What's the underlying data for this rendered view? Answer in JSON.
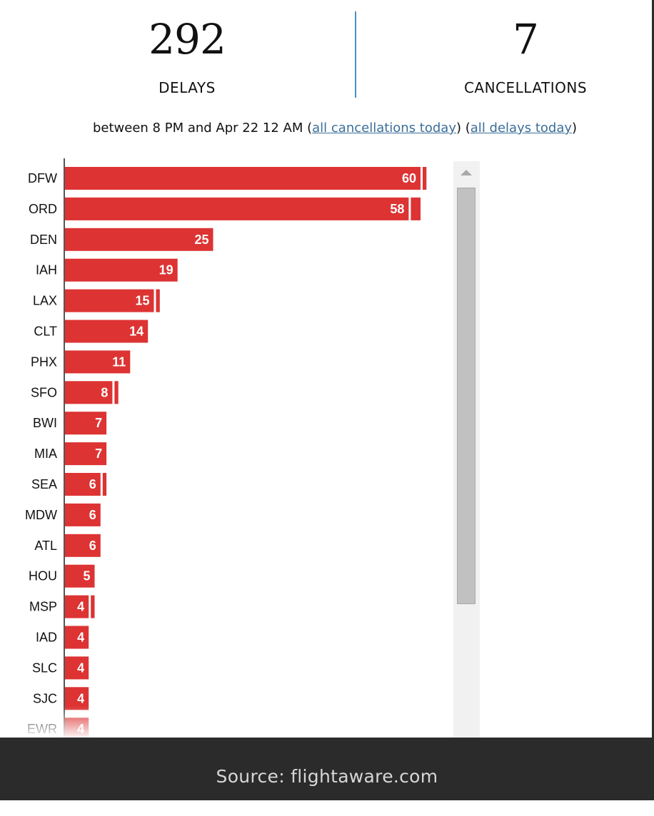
{
  "stats": {
    "delays_count": "292",
    "delays_label": "DELAYS",
    "cancellations_count": "7",
    "cancellations_label": "CANCELLATIONS"
  },
  "subline": {
    "text": "between 8 PM and Apr 22 12 AM",
    "link_cancellations": "all cancellations today",
    "link_delays": "all delays today"
  },
  "chart_data": {
    "type": "bar",
    "orientation": "horizontal",
    "categories": [
      "DFW",
      "ORD",
      "DEN",
      "IAH",
      "LAX",
      "CLT",
      "PHX",
      "SFO",
      "BWI",
      "MIA",
      "SEA",
      "MDW",
      "ATL",
      "HOU",
      "MSP",
      "IAD",
      "SLC",
      "SJC",
      "EWR"
    ],
    "values": [
      60,
      58,
      25,
      19,
      15,
      14,
      11,
      8,
      7,
      7,
      6,
      6,
      6,
      5,
      4,
      4,
      4,
      4,
      4
    ],
    "secondary_values": [
      1,
      2,
      0,
      0,
      1,
      0,
      0,
      1,
      0,
      0,
      1,
      0,
      0,
      0,
      1,
      0,
      0,
      0,
      0
    ],
    "title": "",
    "xlabel": "",
    "ylabel": "",
    "grid": false,
    "colors": {
      "bar": "#dd3333",
      "secondary": "#dd3333",
      "axis": "#555555"
    }
  },
  "footer": {
    "source": "Source: flightaware.com"
  }
}
